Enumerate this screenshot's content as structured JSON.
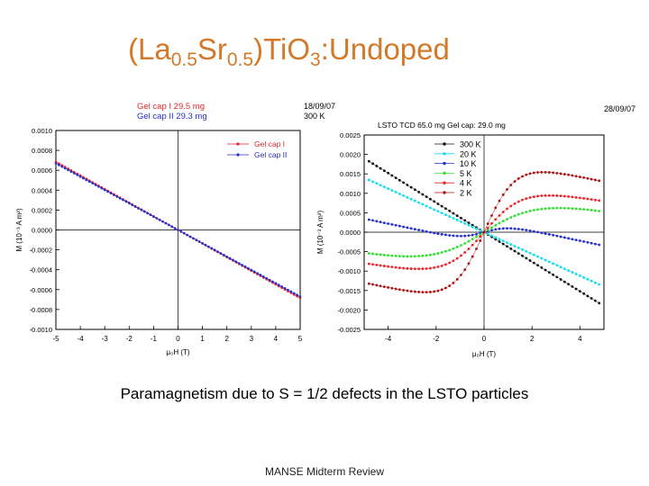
{
  "slide": {
    "title_parts": [
      {
        "text": "(La",
        "sub": false
      },
      {
        "text": "0.5",
        "sub": true
      },
      {
        "text": "Sr",
        "sub": false
      },
      {
        "text": "0.5",
        "sub": true
      },
      {
        "text": ")TiO",
        "sub": false
      },
      {
        "text": "3",
        "sub": true
      },
      {
        "text": ":Undoped",
        "sub": false
      }
    ],
    "caption": "Paramagnetism due to S = 1/2 defects in the LSTO particles",
    "footer": "MANSE Midterm Review"
  },
  "colors": {
    "title": "#d27a2a",
    "red": "#e8252a",
    "blue": "#2430c8",
    "black": "#111111",
    "cyan": "#11ddee",
    "green": "#33dd33",
    "darkred": "#aa1414"
  },
  "chart_data": [
    {
      "type": "scatter",
      "header_lines": [
        "Gel cap I  29.5 mg",
        "Gel cap II 29.3 mg"
      ],
      "xlabel": "μ₀H (T)",
      "ylabel": "M (10⁻³ A m²)",
      "xlim": [
        -5,
        5
      ],
      "ylim": [
        -0.001,
        0.001
      ],
      "xticks": [
        "-5",
        "-4",
        "-3",
        "-2",
        "-1",
        "0",
        "1",
        "2",
        "3",
        "4",
        "5"
      ],
      "yticks": [
        "0.0010",
        "0.0008",
        "0.0006",
        "0.0004",
        "0.0002",
        "0.0000",
        "-0.0002",
        "-0.0004",
        "-0.0006",
        "-0.0008",
        "-0.0010"
      ],
      "legend_position": "top-right",
      "series": [
        {
          "name": "Gel cap I",
          "color": "#e8252a",
          "slope": -0.000137
        },
        {
          "name": "Gel cap II",
          "color": "#2430c8",
          "slope": -0.000134
        }
      ]
    },
    {
      "type": "scatter",
      "header_left": [
        "18/09/07",
        "300 K"
      ],
      "header_right": "28/09/07",
      "subtitle": "LSTO TCD 65.0 mg Gel cap: 29.0 mg",
      "xlabel": "μ₀H (T)",
      "ylabel": "M (10⁻³ A m²)",
      "xlim": [
        -5,
        5
      ],
      "ylim": [
        -0.0025,
        0.0025
      ],
      "xticks": [
        "-4",
        "-2",
        "0",
        "2",
        "4"
      ],
      "yticks": [
        "0.0025",
        "0.0020",
        "0.0015",
        "0.0010",
        "0.0005",
        "0.0000",
        "-0.0005",
        "-0.0010",
        "-0.0015",
        "-0.0020",
        "-0.0025"
      ],
      "legend_position": "top-left",
      "series": [
        {
          "name": "300 K",
          "color": "#111111",
          "linear": -0.00038
        },
        {
          "name": "20 K",
          "color": "#11ddee",
          "linear": -0.00028
        },
        {
          "name": "10 K",
          "color": "#2430c8",
          "linear": -0.00013,
          "sat": 0.0003,
          "scale": 1.0
        },
        {
          "name": "5 K",
          "color": "#33dd33",
          "linear": -0.0001,
          "sat": 0.00105,
          "scale": 2.2
        },
        {
          "name": "4 K",
          "color": "#e8252a",
          "linear": -0.0001,
          "sat": 0.0013,
          "scale": 1.6
        },
        {
          "name": "2 K",
          "color": "#aa1414",
          "linear": -0.00013,
          "sat": 0.00195,
          "scale": 1.3
        }
      ]
    }
  ]
}
